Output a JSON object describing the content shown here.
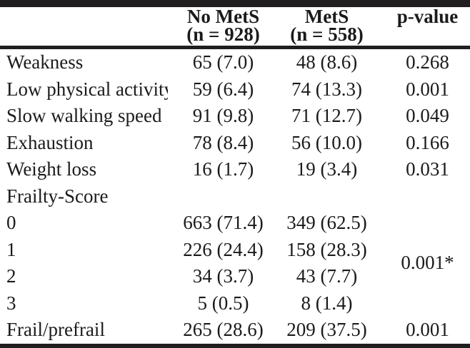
{
  "table": {
    "columns": {
      "label": "",
      "no_mets": {
        "line1": "No MetS",
        "line2": "(n = 928)"
      },
      "mets": {
        "line1": "MetS",
        "line2": "(n = 558)"
      },
      "p_value": "p-value"
    },
    "rows": [
      {
        "label": "Weakness",
        "no_mets": "65 (7.0)",
        "mets": "48 (8.6)",
        "p": "0.268"
      },
      {
        "label": "Low physical activity",
        "no_mets": "59 (6.4)",
        "mets": "74 (13.3)",
        "p": "0.001"
      },
      {
        "label": "Slow walking speed",
        "no_mets": "91 (9.8)",
        "mets": "71 (12.7)",
        "p": "0.049"
      },
      {
        "label": "Exhaustion",
        "no_mets": "78 (8.4)",
        "mets": "56 (10.0)",
        "p": "0.166"
      },
      {
        "label": "Weight loss",
        "no_mets": "16 (1.7)",
        "mets": "19 (3.4)",
        "p": "0.031"
      },
      {
        "label": "Frailty-Score",
        "no_mets": "",
        "mets": "",
        "p": ""
      },
      {
        "label": "0",
        "no_mets": "663 (71.4)",
        "mets": "349 (62.5)"
      },
      {
        "label": "1",
        "no_mets": "226 (24.4)",
        "mets": "158 (28.3)"
      },
      {
        "label": "2",
        "no_mets": "34 (3.7)",
        "mets": "43 (7.7)"
      },
      {
        "label": "3",
        "no_mets": "5 (0.5)",
        "mets": "8 (1.4)"
      },
      {
        "label": "Frail/prefrail",
        "no_mets": "265 (28.6)",
        "mets": "209 (37.5)",
        "p": "0.001"
      }
    ],
    "frailty_score_p": "0.001*"
  },
  "colors": {
    "rule": "#201e1e",
    "text": "#1c1a1b",
    "background": "#ffffff"
  }
}
